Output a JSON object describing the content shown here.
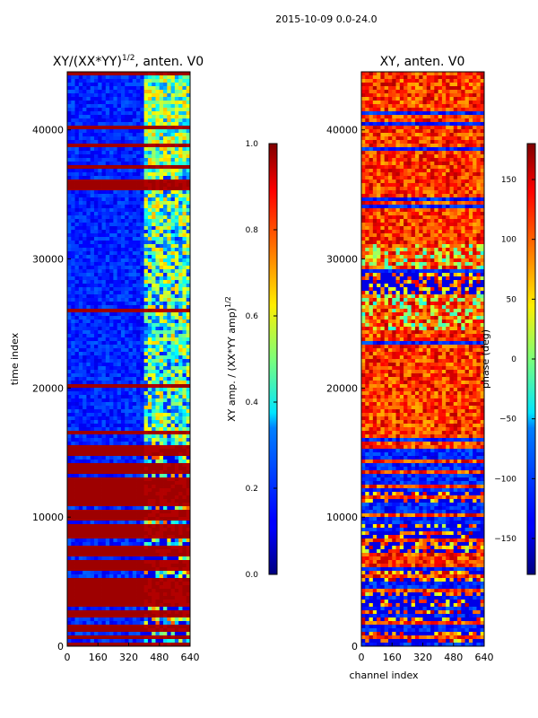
{
  "figure": {
    "suptitle": "2015-10-09 0.0-24.0"
  },
  "chart_data": [
    {
      "type": "heatmap",
      "title_main": "XY/(XX*YY)",
      "title_sup": "1/2",
      "title_tail": ", anten. V0",
      "xlabel": "",
      "ylabel": "time index",
      "xlim": [
        0,
        640
      ],
      "ylim": [
        0,
        44500
      ],
      "xticks": [
        "0",
        "160",
        "320",
        "480",
        "640"
      ],
      "xtick_values": [
        0,
        160,
        320,
        480,
        640
      ],
      "yticks": [
        "0",
        "10000",
        "20000",
        "30000",
        "40000"
      ],
      "ytick_values": [
        0,
        10000,
        20000,
        30000,
        40000
      ],
      "colormap": "jet",
      "colorbar": {
        "label_main": "XY amp. / (XX*YY amp)",
        "label_sup": "1/2",
        "range": [
          0.0,
          1.0
        ],
        "ticks": [
          "0.0",
          "0.2",
          "0.4",
          "0.6",
          "0.8",
          "1.0"
        ],
        "tick_values": [
          0.0,
          0.2,
          0.4,
          0.6,
          0.8,
          1.0
        ]
      }
    },
    {
      "type": "heatmap",
      "title_main": "XY, anten. V0",
      "xlabel": "channel index",
      "ylabel": "",
      "xlim": [
        0,
        640
      ],
      "ylim": [
        0,
        44500
      ],
      "xticks": [
        "0",
        "160",
        "320",
        "480",
        "640"
      ],
      "xtick_values": [
        0,
        160,
        320,
        480,
        640
      ],
      "yticks": [
        "0",
        "10000",
        "20000",
        "30000",
        "40000"
      ],
      "ytick_values": [
        0,
        10000,
        20000,
        30000,
        40000
      ],
      "colormap": "jet",
      "colorbar": {
        "label_main": "phase (deg)",
        "range": [
          -180,
          180
        ],
        "ticks": [
          "−150",
          "−100",
          "−50",
          "0",
          "50",
          "100",
          "150"
        ],
        "tick_values": [
          -150,
          -100,
          -50,
          0,
          50,
          100,
          150
        ]
      }
    }
  ]
}
